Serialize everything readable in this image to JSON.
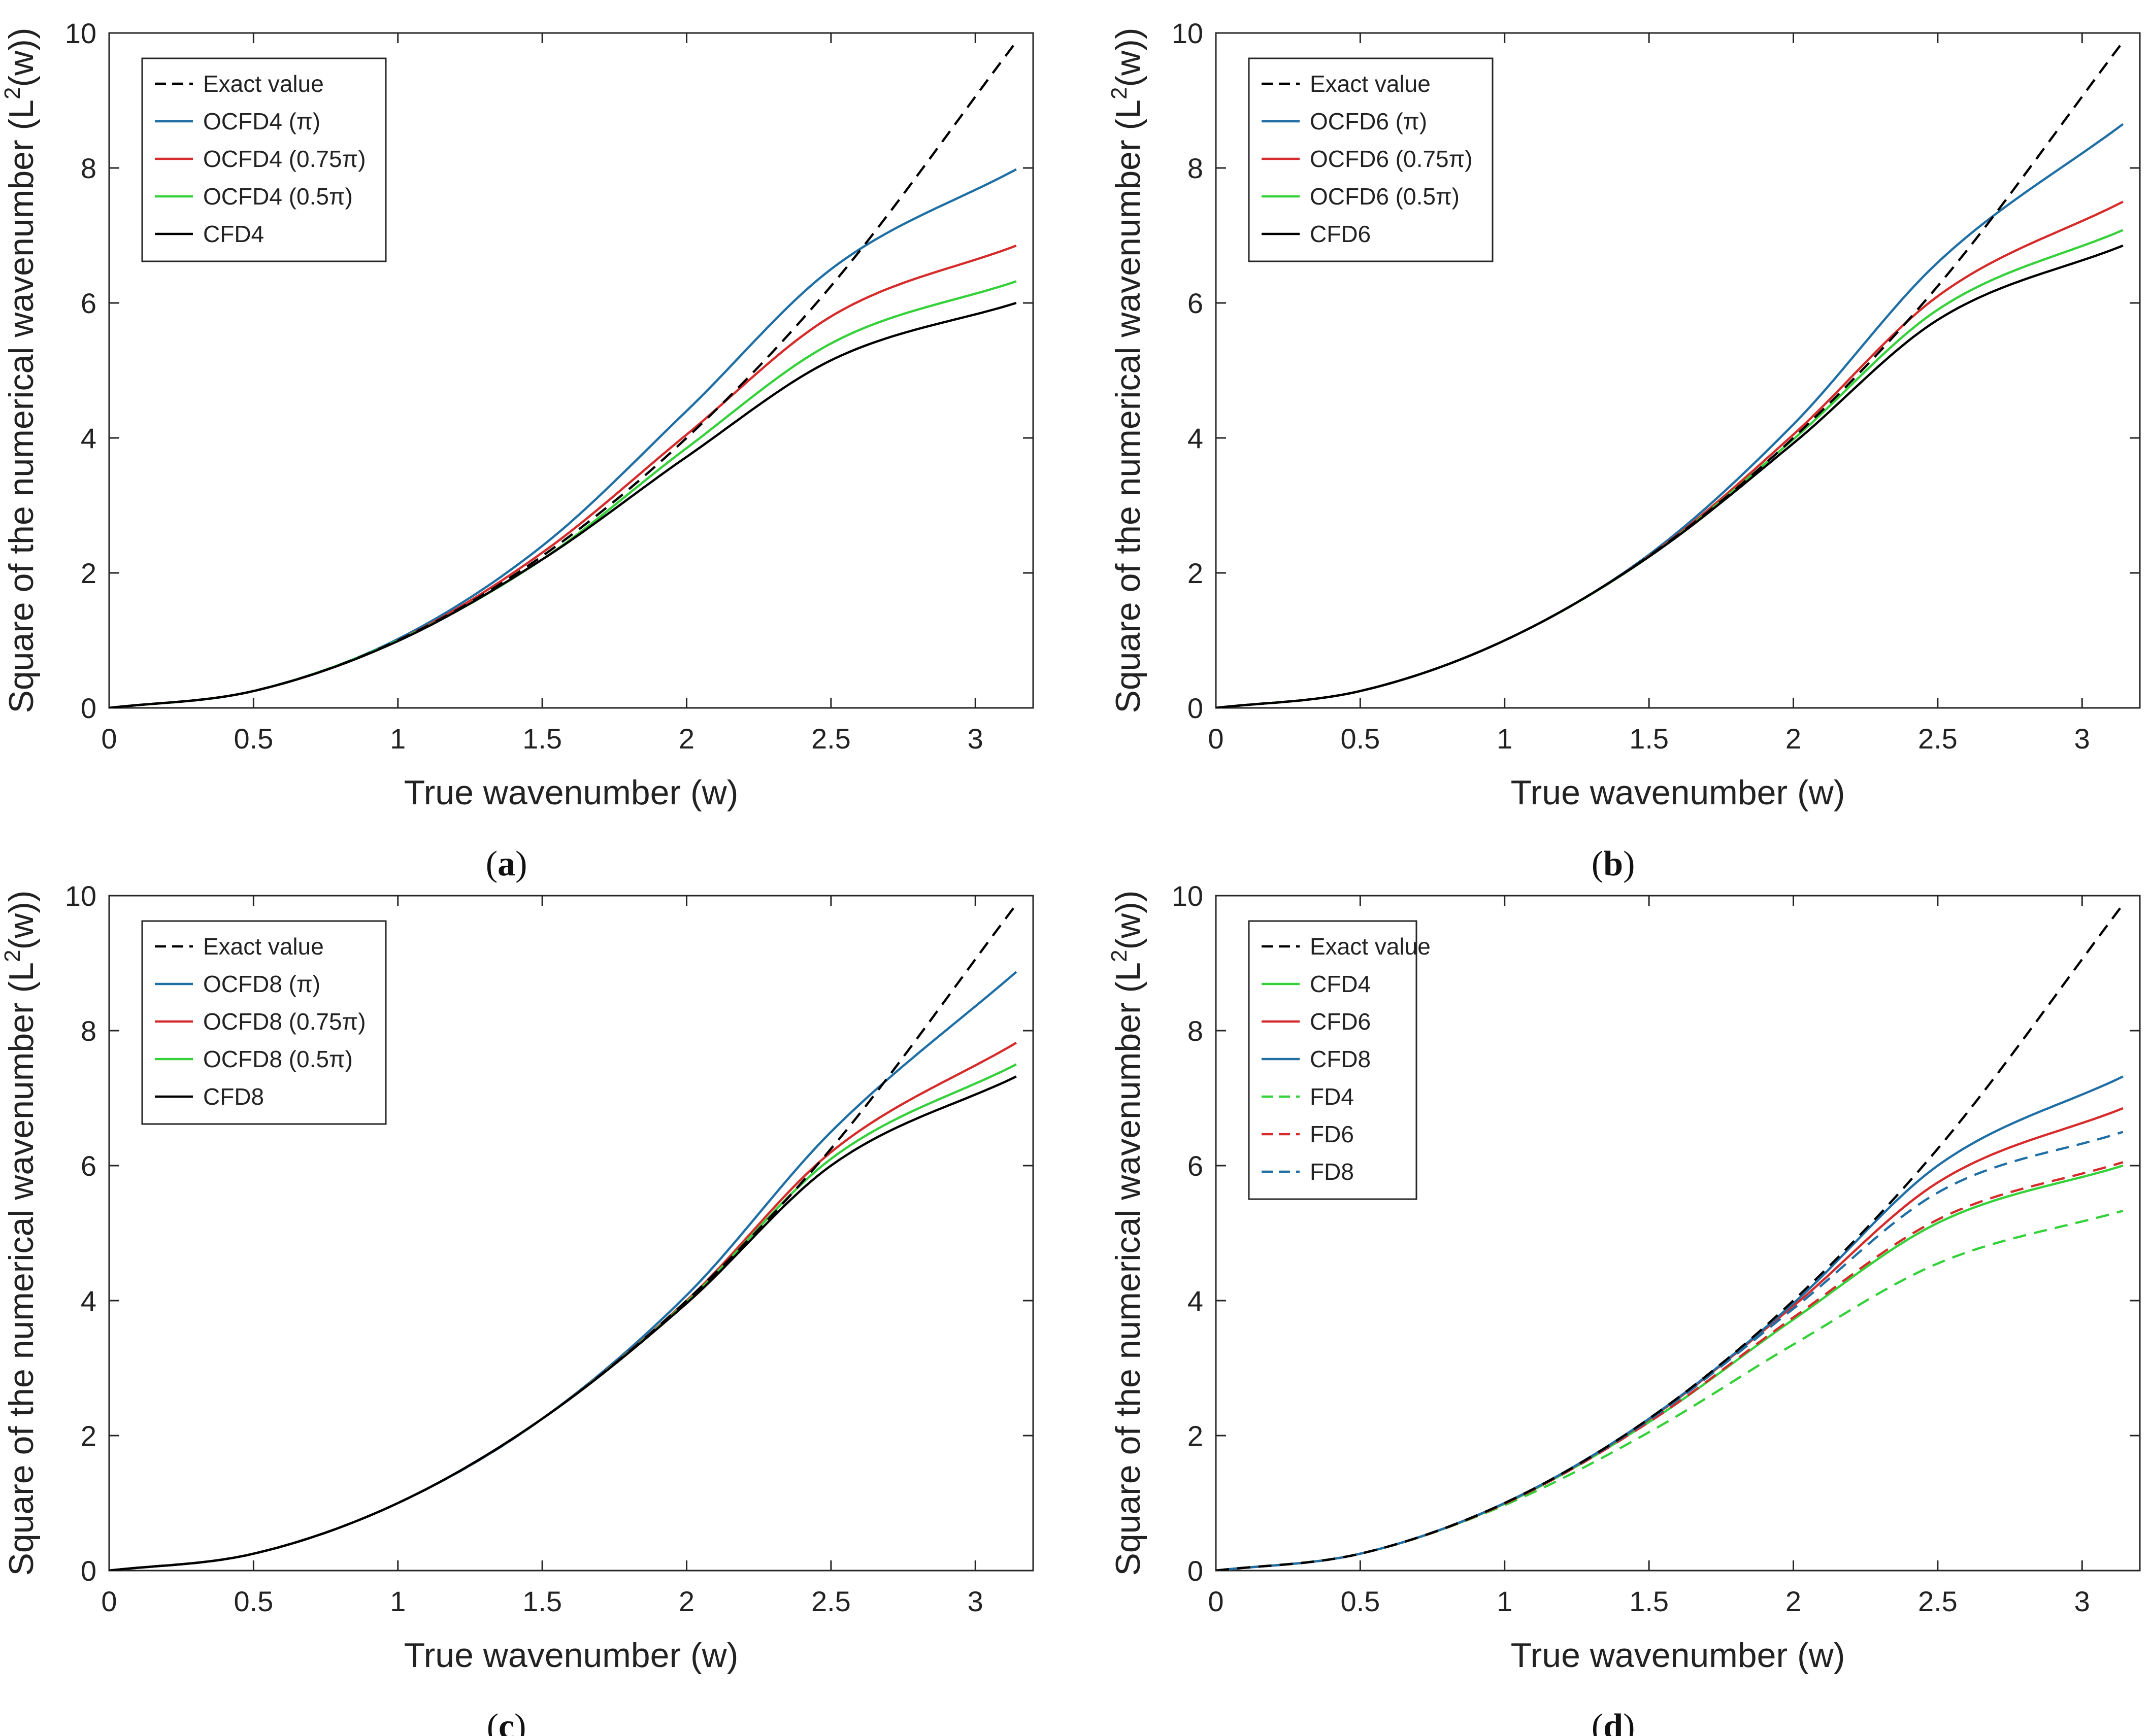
{
  "figure": {
    "grid": false,
    "colors": {
      "black": "#000000",
      "blue": "#1f6fa5",
      "red": "#d62b2b",
      "green": "#35d13a"
    }
  },
  "chart_data": [
    {
      "type": "line",
      "panel_label": "a",
      "xlabel": "True wavenumber (w)",
      "ylabel": "Square of the numerical wavenumber (L",
      "ylabel_sup": "2",
      "ylabel_tail": "(w))",
      "xlim": [
        0,
        3.2
      ],
      "ylim": [
        0,
        10
      ],
      "xticks": [
        "0",
        "0.5",
        "1",
        "1.5",
        "2",
        "2.5",
        "3"
      ],
      "yticks": [
        "0",
        "2",
        "4",
        "6",
        "8",
        "10"
      ],
      "legend_position": "top-left",
      "series": [
        {
          "name": "Exact value",
          "color": "#000000",
          "dash": true,
          "x": [
            0,
            0.5,
            1,
            1.5,
            2,
            2.5,
            3.1416
          ],
          "values": [
            0,
            0.25,
            1,
            2.25,
            4,
            6.25,
            9.87
          ]
        },
        {
          "name": "OCFD4 (π)",
          "color": "#1f6fa5",
          "dash": false,
          "x": [
            0,
            0.5,
            1,
            1.5,
            2,
            2.5,
            3.1416
          ],
          "values": [
            0,
            0.25,
            1.02,
            2.4,
            4.4,
            6.5,
            7.98
          ]
        },
        {
          "name": "OCFD4 (0.75π)",
          "color": "#d62b2b",
          "dash": false,
          "x": [
            0,
            0.5,
            1,
            1.5,
            2,
            2.5,
            3.1416
          ],
          "values": [
            0,
            0.25,
            1.0,
            2.3,
            4.05,
            5.8,
            6.85
          ]
        },
        {
          "name": "OCFD4 (0.5π)",
          "color": "#35d13a",
          "dash": false,
          "x": [
            0,
            0.5,
            1,
            1.5,
            2,
            2.5,
            3.1416
          ],
          "values": [
            0,
            0.25,
            1.0,
            2.2,
            3.85,
            5.4,
            6.32
          ]
        },
        {
          "name": "CFD4",
          "color": "#000000",
          "dash": false,
          "x": [
            0,
            0.5,
            1,
            1.5,
            2,
            2.5,
            3.1416
          ],
          "values": [
            0,
            0.25,
            0.99,
            2.2,
            3.72,
            5.15,
            6.0
          ]
        }
      ]
    },
    {
      "type": "line",
      "panel_label": "b",
      "xlabel": "True wavenumber (w)",
      "ylabel": "Square of the numerical wavenumber (L",
      "ylabel_sup": "2",
      "ylabel_tail": "(w))",
      "xlim": [
        0,
        3.2
      ],
      "ylim": [
        0,
        10
      ],
      "xticks": [
        "0",
        "0.5",
        "1",
        "1.5",
        "2",
        "2.5",
        "3"
      ],
      "yticks": [
        "0",
        "2",
        "4",
        "6",
        "8",
        "10"
      ],
      "legend_position": "top-left",
      "series": [
        {
          "name": "Exact value",
          "color": "#000000",
          "dash": true,
          "x": [
            0,
            0.5,
            1,
            1.5,
            2,
            2.5,
            3.1416
          ],
          "values": [
            0,
            0.25,
            1,
            2.25,
            4,
            6.25,
            9.87
          ]
        },
        {
          "name": "OCFD6 (π)",
          "color": "#1f6fa5",
          "dash": false,
          "x": [
            0,
            0.5,
            1,
            1.5,
            2,
            2.5,
            3.1416
          ],
          "values": [
            0,
            0.25,
            1.0,
            2.27,
            4.2,
            6.6,
            8.65
          ]
        },
        {
          "name": "OCFD6 (0.75π)",
          "color": "#d62b2b",
          "dash": false,
          "x": [
            0,
            0.5,
            1,
            1.5,
            2,
            2.5,
            3.1416
          ],
          "values": [
            0,
            0.25,
            1.0,
            2.25,
            4.05,
            6.1,
            7.5
          ]
        },
        {
          "name": "OCFD6 (0.5π)",
          "color": "#35d13a",
          "dash": false,
          "x": [
            0,
            0.5,
            1,
            1.5,
            2,
            2.5,
            3.1416
          ],
          "values": [
            0,
            0.25,
            1.0,
            2.24,
            3.98,
            5.9,
            7.08
          ]
        },
        {
          "name": "CFD6",
          "color": "#000000",
          "dash": false,
          "x": [
            0,
            0.5,
            1,
            1.5,
            2,
            2.5,
            3.1416
          ],
          "values": [
            0,
            0.25,
            1.0,
            2.24,
            3.92,
            5.75,
            6.85
          ]
        }
      ]
    },
    {
      "type": "line",
      "panel_label": "c",
      "xlabel": "True wavenumber (w)",
      "ylabel": "Square of the numerical wavenumber (L",
      "ylabel_sup": "2",
      "ylabel_tail": "(w))",
      "xlim": [
        0,
        3.2
      ],
      "ylim": [
        0,
        10
      ],
      "xticks": [
        "0",
        "0.5",
        "1",
        "1.5",
        "2",
        "2.5",
        "3"
      ],
      "yticks": [
        "0",
        "2",
        "4",
        "6",
        "8",
        "10"
      ],
      "legend_position": "top-left",
      "series": [
        {
          "name": "Exact value",
          "color": "#000000",
          "dash": true,
          "x": [
            0,
            0.5,
            1,
            1.5,
            2,
            2.5,
            3.1416
          ],
          "values": [
            0,
            0.25,
            1,
            2.25,
            4,
            6.25,
            9.87
          ]
        },
        {
          "name": "OCFD8 (π)",
          "color": "#1f6fa5",
          "dash": false,
          "x": [
            0,
            0.5,
            1,
            1.5,
            2,
            2.5,
            3.1416
          ],
          "values": [
            0,
            0.25,
            1.0,
            2.25,
            4.08,
            6.5,
            8.87
          ]
        },
        {
          "name": "OCFD8 (0.75π)",
          "color": "#d62b2b",
          "dash": false,
          "x": [
            0,
            0.5,
            1,
            1.5,
            2,
            2.5,
            3.1416
          ],
          "values": [
            0,
            0.25,
            1.0,
            2.25,
            4.0,
            6.2,
            7.82
          ]
        },
        {
          "name": "OCFD8 (0.5π)",
          "color": "#35d13a",
          "dash": false,
          "x": [
            0,
            0.5,
            1,
            1.5,
            2,
            2.5,
            3.1416
          ],
          "values": [
            0,
            0.25,
            1.0,
            2.25,
            3.98,
            6.1,
            7.5
          ]
        },
        {
          "name": "CFD8",
          "color": "#000000",
          "dash": false,
          "x": [
            0,
            0.5,
            1,
            1.5,
            2,
            2.5,
            3.1416
          ],
          "values": [
            0,
            0.25,
            1.0,
            2.25,
            3.96,
            6.0,
            7.32
          ]
        }
      ]
    },
    {
      "type": "line",
      "panel_label": "d",
      "xlabel": "True wavenumber (w)",
      "ylabel": "Square of the numerical wavenumber (L",
      "ylabel_sup": "2",
      "ylabel_tail": "(w))",
      "xlim": [
        0,
        3.2
      ],
      "ylim": [
        0,
        10
      ],
      "xticks": [
        "0",
        "0.5",
        "1",
        "1.5",
        "2",
        "2.5",
        "3"
      ],
      "yticks": [
        "0",
        "2",
        "4",
        "6",
        "8",
        "10"
      ],
      "legend_position": "top-left",
      "series": [
        {
          "name": "Exact value",
          "color": "#000000",
          "dash": true,
          "x": [
            0,
            0.5,
            1,
            1.5,
            2,
            2.5,
            3.1416
          ],
          "values": [
            0,
            0.25,
            1,
            2.25,
            4,
            6.25,
            9.87
          ]
        },
        {
          "name": "CFD4",
          "color": "#35d13a",
          "dash": false,
          "x": [
            0,
            0.5,
            1,
            1.5,
            2,
            2.5,
            3.1416
          ],
          "values": [
            0,
            0.25,
            0.99,
            2.2,
            3.72,
            5.15,
            6.0
          ]
        },
        {
          "name": "CFD6",
          "color": "#d62b2b",
          "dash": false,
          "x": [
            0,
            0.5,
            1,
            1.5,
            2,
            2.5,
            3.1416
          ],
          "values": [
            0,
            0.25,
            1.0,
            2.24,
            3.92,
            5.75,
            6.85
          ]
        },
        {
          "name": "CFD8",
          "color": "#1f6fa5",
          "dash": false,
          "x": [
            0,
            0.5,
            1,
            1.5,
            2,
            2.5,
            3.1416
          ],
          "values": [
            0,
            0.25,
            1.0,
            2.25,
            3.96,
            6.0,
            7.32
          ]
        },
        {
          "name": "FD4",
          "color": "#35d13a",
          "dash": true,
          "x": [
            0,
            0.5,
            1,
            1.5,
            2,
            2.5,
            3.1416
          ],
          "values": [
            0,
            0.25,
            0.97,
            2.05,
            3.35,
            4.55,
            5.33
          ]
        },
        {
          "name": "FD6",
          "color": "#d62b2b",
          "dash": true,
          "x": [
            0,
            0.5,
            1,
            1.5,
            2,
            2.5,
            3.1416
          ],
          "values": [
            0,
            0.25,
            0.99,
            2.2,
            3.75,
            5.2,
            6.05
          ]
        },
        {
          "name": "FD8",
          "color": "#1f6fa5",
          "dash": true,
          "x": [
            0,
            0.5,
            1,
            1.5,
            2,
            2.5,
            3.1416
          ],
          "values": [
            0,
            0.25,
            1.0,
            2.23,
            3.88,
            5.6,
            6.5
          ]
        }
      ]
    }
  ]
}
